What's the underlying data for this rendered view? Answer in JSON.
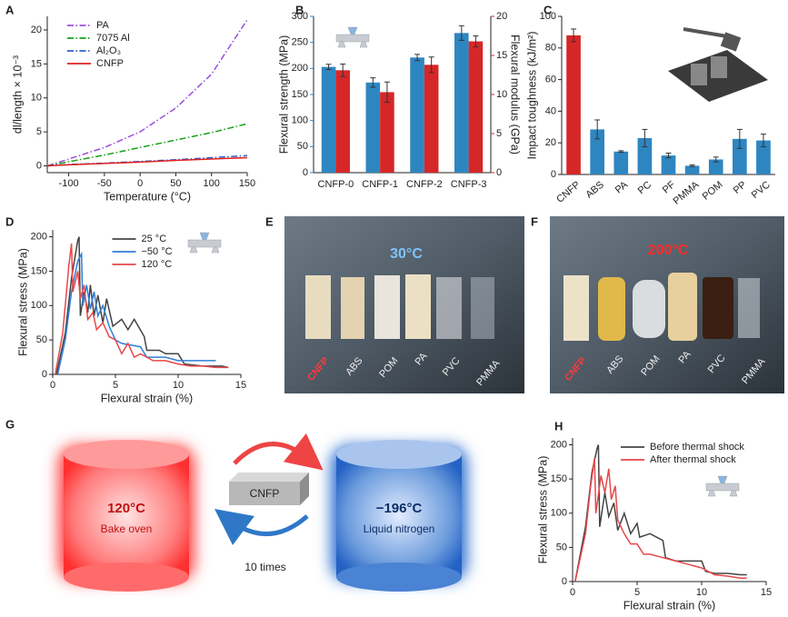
{
  "chart_data": [
    {
      "panel": "A",
      "type": "line",
      "xlabel": "Temperature (°C)",
      "ylabel": "dl/length × 10⁻³",
      "xlim": [
        -130,
        150
      ],
      "xticks": [
        -100,
        -50,
        0,
        50,
        100,
        150
      ],
      "ylim": [
        -1,
        22
      ],
      "yticks": [
        0,
        5,
        10,
        15,
        20
      ],
      "legend": "upper left",
      "x": [
        -130,
        -100,
        -50,
        0,
        50,
        100,
        150
      ],
      "series": [
        {
          "name": "PA",
          "color": "#9b4de0",
          "dash": "dashdot",
          "values": [
            0,
            1,
            2.7,
            5,
            8.5,
            13.5,
            21.5
          ]
        },
        {
          "name": "7075 Al",
          "color": "#1a9e1a",
          "dash": "dashdot",
          "values": [
            0,
            0.6,
            1.6,
            2.7,
            3.8,
            4.9,
            6.2
          ]
        },
        {
          "name": "Al₂O₃",
          "color": "#2a5fd0",
          "dash": "dashdot",
          "values": [
            0,
            0.2,
            0.4,
            0.65,
            0.9,
            1.2,
            1.5
          ]
        },
        {
          "name": "CNFP",
          "color": "#e02020",
          "dash": "solid",
          "values": [
            0,
            0.15,
            0.35,
            0.55,
            0.8,
            1.0,
            1.2
          ]
        }
      ]
    },
    {
      "panel": "B",
      "type": "bar",
      "ylabel": "Flexural strength (MPa)",
      "y2label": "Flexural modulus (GPa)",
      "categories": [
        "CNFP-0",
        "CNFP-1",
        "CNFP-2",
        "CNFP-3"
      ],
      "ylim": [
        0,
        300
      ],
      "yticks": [
        0,
        50,
        100,
        150,
        200,
        250,
        300
      ],
      "y2lim": [
        0,
        20
      ],
      "y2ticks": [
        0,
        5,
        10,
        15,
        20
      ],
      "series": [
        {
          "color": "#2e86c1",
          "axis": "y",
          "values": [
            203,
            173,
            221,
            268
          ],
          "errors": [
            5,
            9,
            6,
            14
          ]
        },
        {
          "color": "#d62728",
          "axis": "y2",
          "values": [
            13.1,
            10.3,
            13.8,
            16.8
          ],
          "errors": [
            0.8,
            1.3,
            1.0,
            0.7
          ]
        }
      ]
    },
    {
      "panel": "C",
      "type": "bar",
      "ylabel": "Impact toughness (kJ/m²)",
      "categories": [
        "CNFP",
        "ABS",
        "PA",
        "PC",
        "PF",
        "PMMA",
        "POM",
        "PP",
        "PVC"
      ],
      "ylim": [
        0,
        100
      ],
      "yticks": [
        0,
        20,
        40,
        60,
        80,
        100
      ],
      "values": [
        88,
        28.5,
        14.5,
        23,
        12,
        5.5,
        9.5,
        22.5,
        21.5
      ],
      "errors": [
        4,
        6,
        0.5,
        5.5,
        1.5,
        0.5,
        1.5,
        6,
        4
      ],
      "colors": [
        "#d62728",
        "#2e86c1",
        "#2e86c1",
        "#2e86c1",
        "#2e86c1",
        "#2e86c1",
        "#2e86c1",
        "#2e86c1",
        "#2e86c1"
      ]
    },
    {
      "panel": "D",
      "type": "line",
      "xlabel": "Flexural strain (%)",
      "ylabel": "Flexural stress (MPa)",
      "xlim": [
        0,
        15
      ],
      "xticks": [
        0,
        5,
        10,
        15
      ],
      "ylim": [
        0,
        210
      ],
      "yticks": [
        0,
        50,
        100,
        150,
        200
      ],
      "legend": "upper center",
      "series": [
        {
          "name": "25 °C",
          "color": "#444444",
          "dash": "solid",
          "x": [
            0.3,
            1,
            1.5,
            2.0,
            2.1,
            2.2,
            2.5,
            2.8,
            3.0,
            3.3,
            3.6,
            4.0,
            4.3,
            4.8,
            5.5,
            6,
            6.5,
            7.3,
            7.5,
            8.5,
            9,
            10,
            10.5,
            12,
            13.5,
            14
          ],
          "values": [
            0,
            60,
            140,
            195,
            200,
            85,
            120,
            90,
            130,
            85,
            115,
            75,
            110,
            70,
            80,
            65,
            80,
            55,
            35,
            35,
            30,
            30,
            15,
            12,
            12,
            10
          ]
        },
        {
          "name": "−50 °C",
          "color": "#2e7fd9",
          "dash": "solid",
          "x": [
            0.4,
            1,
            1.5,
            2.0,
            2.3,
            2.4,
            2.7,
            3.0,
            3.3,
            3.6,
            4.0,
            4.5,
            5,
            5.5,
            7,
            7.5,
            9,
            10,
            10.5,
            12,
            13
          ],
          "values": [
            0,
            50,
            120,
            165,
            175,
            100,
            130,
            95,
            120,
            85,
            100,
            70,
            50,
            45,
            40,
            25,
            25,
            20,
            20,
            20,
            20
          ]
        },
        {
          "name": "120 °C",
          "color": "#e8474a",
          "dash": "solid",
          "x": [
            0.2,
            0.8,
            1.3,
            1.5,
            1.6,
            2.0,
            2.2,
            2.5,
            2.8,
            3.2,
            3.5,
            4,
            4.5,
            5,
            5.5,
            6,
            6.5,
            7,
            8,
            9,
            10,
            11,
            12,
            13,
            14
          ],
          "values": [
            0,
            60,
            160,
            190,
            120,
            150,
            110,
            130,
            80,
            90,
            65,
            75,
            55,
            50,
            30,
            45,
            25,
            30,
            20,
            20,
            15,
            12,
            12,
            10,
            10
          ]
        }
      ]
    },
    {
      "panel": "H",
      "type": "line",
      "xlabel": "Flexural strain (%)",
      "ylabel": "Flexural stress (MPa)",
      "xlim": [
        0,
        15
      ],
      "xticks": [
        0,
        5,
        10,
        15
      ],
      "ylim": [
        0,
        210
      ],
      "yticks": [
        0,
        50,
        100,
        150,
        200
      ],
      "legend": "upper right",
      "series": [
        {
          "name": "Before thermal shock",
          "color": "#444444",
          "dash": "solid",
          "x": [
            0.2,
            1,
            1.5,
            1.9,
            2.0,
            2.1,
            2.5,
            2.8,
            3.2,
            3.5,
            4,
            4.5,
            5,
            5.2,
            6,
            7,
            7.2,
            8,
            9,
            10,
            10.3,
            11,
            12,
            13,
            13.5
          ],
          "values": [
            0,
            80,
            160,
            195,
            200,
            80,
            130,
            95,
            115,
            75,
            100,
            70,
            85,
            65,
            70,
            60,
            35,
            30,
            30,
            30,
            15,
            12,
            12,
            10,
            10
          ]
        },
        {
          "name": "After thermal shock",
          "color": "#e8474a",
          "dash": "solid",
          "x": [
            0.2,
            1,
            1.4,
            1.7,
            1.8,
            2.2,
            2.5,
            2.8,
            3.0,
            3.3,
            3.5,
            4,
            4.5,
            5,
            5.5,
            6,
            7,
            8,
            9,
            10,
            11,
            12,
            13,
            13.5
          ],
          "values": [
            0,
            70,
            140,
            180,
            100,
            155,
            130,
            165,
            120,
            140,
            90,
            70,
            55,
            55,
            40,
            40,
            35,
            30,
            25,
            20,
            10,
            8,
            5,
            5
          ]
        }
      ]
    }
  ],
  "photos": [
    {
      "panel": "E",
      "temperature": "30°C",
      "labels": [
        "CNFP",
        "ABS",
        "POM",
        "PA",
        "PVC",
        "PMMA"
      ]
    },
    {
      "panel": "F",
      "temperature": "200°C",
      "labels": [
        "CNFP",
        "ABS",
        "POM",
        "PA",
        "PVC",
        "PMMA"
      ]
    }
  ],
  "diagram": {
    "panel": "G",
    "hot": {
      "temperature": "120°C",
      "label": "Bake oven"
    },
    "sample": "CNFP",
    "cycles": "10 times",
    "cold": {
      "temperature": "−196°C",
      "label": "Liquid nitrogen"
    }
  }
}
